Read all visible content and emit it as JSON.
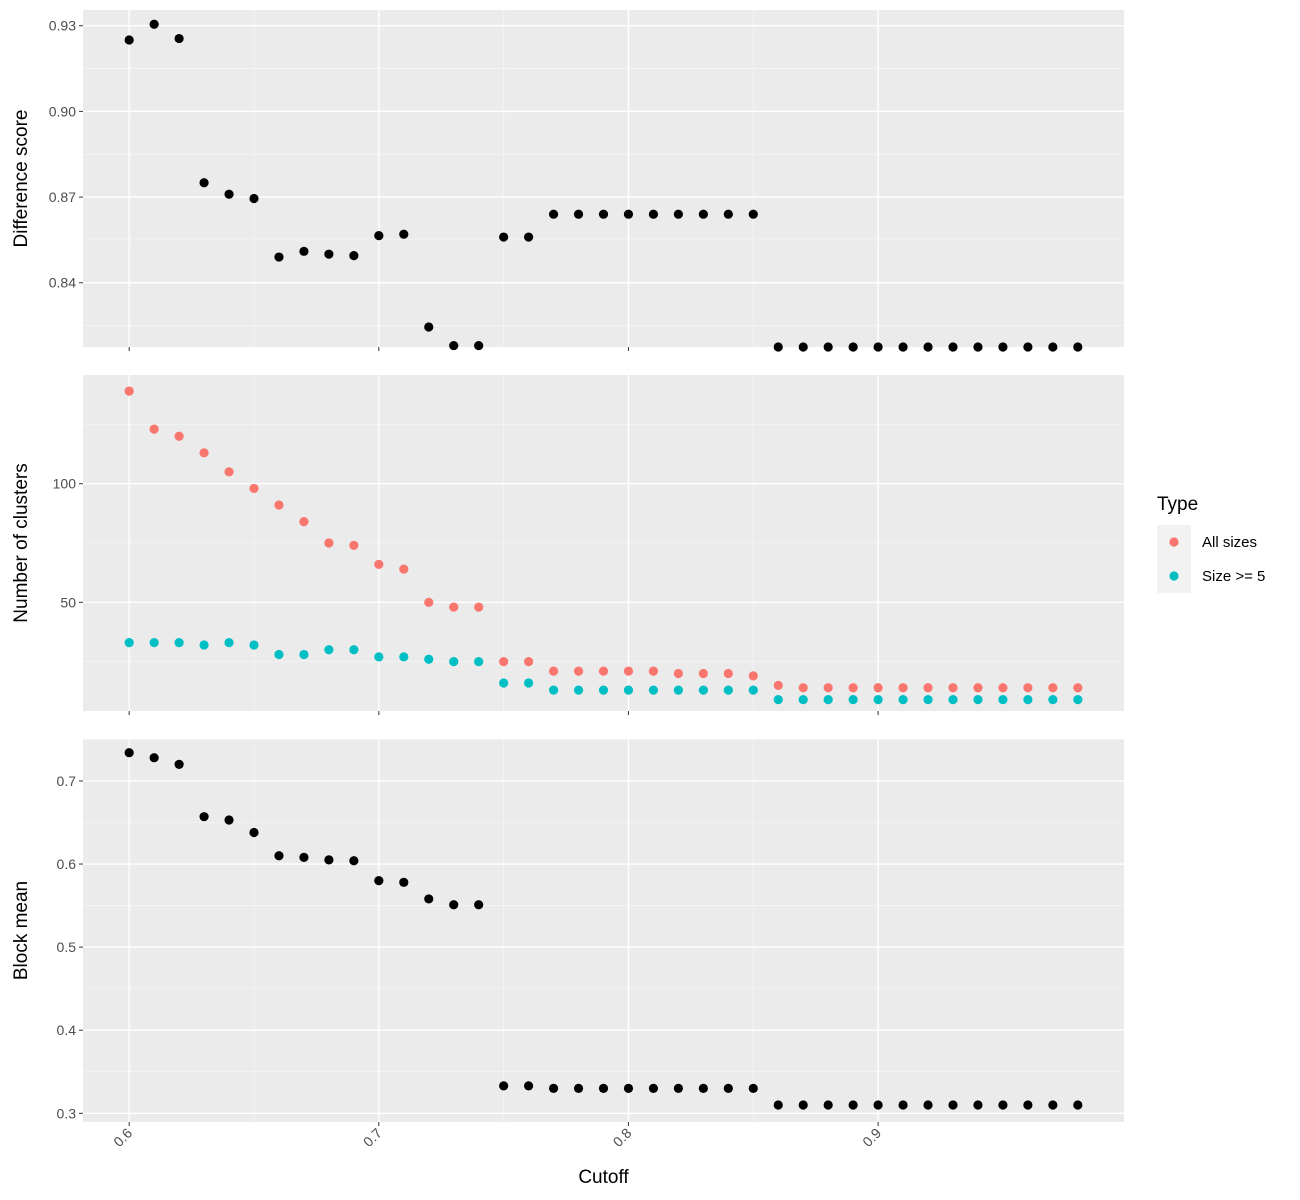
{
  "chart_data": [
    {
      "type": "scatter",
      "ylabel": "Difference score",
      "ylim": [
        0.8175,
        0.9355
      ],
      "yticks": [
        0.84,
        0.87,
        0.9,
        0.93
      ],
      "ytick_labels": [
        "0.84",
        "0.87",
        "0.90",
        "0.93"
      ],
      "grid": true,
      "series": [
        {
          "color": "#000000",
          "x": [
            0.6,
            0.61,
            0.62,
            0.63,
            0.64,
            0.65,
            0.66,
            0.67,
            0.68,
            0.69,
            0.7,
            0.71,
            0.72,
            0.73,
            0.74,
            0.75,
            0.76,
            0.77,
            0.78,
            0.79,
            0.8,
            0.81,
            0.82,
            0.83,
            0.84,
            0.85,
            0.86,
            0.87,
            0.88,
            0.89,
            0.9,
            0.91,
            0.92,
            0.93,
            0.94,
            0.95,
            0.96,
            0.97,
            0.98
          ],
          "y": [
            0.925,
            0.9305,
            0.9255,
            0.875,
            0.871,
            0.8695,
            0.849,
            0.851,
            0.85,
            0.8495,
            0.8565,
            0.857,
            0.8245,
            0.818,
            0.818,
            0.856,
            0.856,
            0.864,
            0.864,
            0.864,
            0.864,
            0.864,
            0.864,
            0.864,
            0.864,
            0.864,
            0.8175,
            0.8175,
            0.8175,
            0.8175,
            0.8175,
            0.8175,
            0.8175,
            0.8175,
            0.8175,
            0.8175,
            0.8175,
            0.8175,
            0.8175
          ]
        }
      ]
    },
    {
      "type": "scatter",
      "ylabel": "Number of clusters",
      "ylim": [
        4.2,
        145.8
      ],
      "yticks": [
        50,
        100
      ],
      "ytick_labels": [
        "50",
        "100"
      ],
      "grid": true,
      "legend": {
        "title": "Type",
        "position": "right",
        "entries": [
          "All sizes",
          "Size >= 5"
        ]
      },
      "series": [
        {
          "name": "All sizes",
          "color": "#F8766D",
          "x": [
            0.6,
            0.61,
            0.62,
            0.63,
            0.64,
            0.65,
            0.66,
            0.67,
            0.68,
            0.69,
            0.7,
            0.71,
            0.72,
            0.73,
            0.74,
            0.75,
            0.76,
            0.77,
            0.78,
            0.79,
            0.8,
            0.81,
            0.82,
            0.83,
            0.84,
            0.85,
            0.86,
            0.87,
            0.88,
            0.89,
            0.9,
            0.91,
            0.92,
            0.93,
            0.94,
            0.95,
            0.96,
            0.97,
            0.98
          ],
          "y": [
            139,
            123,
            120,
            113,
            105,
            98,
            91,
            84,
            75,
            74,
            66,
            64,
            50,
            48,
            48,
            25,
            25,
            21,
            21,
            21,
            21,
            21,
            20,
            20,
            20,
            19,
            15,
            14,
            14,
            14,
            14,
            14,
            14,
            14,
            14,
            14,
            14,
            14,
            14
          ]
        },
        {
          "name": "Size >= 5",
          "color": "#00BFC4",
          "x": [
            0.6,
            0.61,
            0.62,
            0.63,
            0.64,
            0.65,
            0.66,
            0.67,
            0.68,
            0.69,
            0.7,
            0.71,
            0.72,
            0.73,
            0.74,
            0.75,
            0.76,
            0.77,
            0.78,
            0.79,
            0.8,
            0.81,
            0.82,
            0.83,
            0.84,
            0.85,
            0.86,
            0.87,
            0.88,
            0.89,
            0.9,
            0.91,
            0.92,
            0.93,
            0.94,
            0.95,
            0.96,
            0.97,
            0.98
          ],
          "y": [
            33,
            33,
            33,
            32,
            33,
            32,
            28,
            28,
            30,
            30,
            27,
            27,
            26,
            25,
            25,
            16,
            16,
            13,
            13,
            13,
            13,
            13,
            13,
            13,
            13,
            13,
            9,
            9,
            9,
            9,
            9,
            9,
            9,
            9,
            9,
            9,
            9,
            9,
            9
          ]
        }
      ]
    },
    {
      "type": "scatter",
      "ylabel": "Block mean",
      "xlabel": "Cutoff",
      "xticks": [
        0.6,
        0.7,
        0.8,
        0.9
      ],
      "xtick_labels": [
        "0.6",
        "0.7",
        "0.8",
        "0.9"
      ],
      "xlim": [
        0.5815,
        0.9985
      ],
      "ylim": [
        0.2895,
        0.7505
      ],
      "yticks": [
        0.3,
        0.4,
        0.5,
        0.6,
        0.7
      ],
      "ytick_labels": [
        "0.3",
        "0.4",
        "0.5",
        "0.6",
        "0.7"
      ],
      "grid": true,
      "series": [
        {
          "color": "#000000",
          "x": [
            0.6,
            0.61,
            0.62,
            0.63,
            0.64,
            0.65,
            0.66,
            0.67,
            0.68,
            0.69,
            0.7,
            0.71,
            0.72,
            0.73,
            0.74,
            0.75,
            0.76,
            0.77,
            0.78,
            0.79,
            0.8,
            0.81,
            0.82,
            0.83,
            0.84,
            0.85,
            0.86,
            0.87,
            0.88,
            0.89,
            0.9,
            0.91,
            0.92,
            0.93,
            0.94,
            0.95,
            0.96,
            0.97,
            0.98
          ],
          "y": [
            0.734,
            0.728,
            0.72,
            0.657,
            0.653,
            0.638,
            0.61,
            0.608,
            0.605,
            0.604,
            0.58,
            0.578,
            0.558,
            0.551,
            0.551,
            0.333,
            0.333,
            0.33,
            0.33,
            0.33,
            0.33,
            0.33,
            0.33,
            0.33,
            0.33,
            0.33,
            0.31,
            0.31,
            0.31,
            0.31,
            0.31,
            0.31,
            0.31,
            0.31,
            0.31,
            0.31,
            0.31,
            0.31,
            0.31
          ]
        }
      ]
    }
  ]
}
